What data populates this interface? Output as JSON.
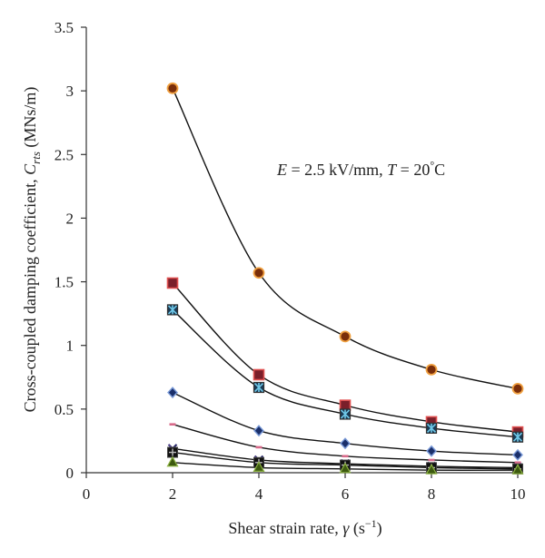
{
  "chart_data": {
    "type": "line",
    "title": "",
    "xlabel": {
      "prefix": "Shear strain rate, ",
      "symbol": "γ",
      "unit_open": " (s",
      "unit_exp": "−1",
      "unit_close": ")"
    },
    "ylabel": {
      "prefix": "Cross-coupled damping coefficient, ",
      "symbol": "C",
      "subscript": "rts",
      "unit": " (MNs/m)"
    },
    "annotation": {
      "e_symbol": "E",
      "e_text": " = 2.5 kV/mm, ",
      "t_symbol": "T",
      "t_text": " = 20",
      "degree": "°",
      "t_unit": "C"
    },
    "xlim": [
      0,
      10
    ],
    "ylim": [
      0,
      3.5
    ],
    "xticks": [
      "0",
      "2",
      "4",
      "6",
      "8",
      "10"
    ],
    "yticks": [
      "0",
      "0.5",
      "1",
      "1.5",
      "2",
      "2.5",
      "3",
      "3.5"
    ],
    "grid": false,
    "legend": "none",
    "x": [
      2,
      4,
      6,
      8,
      10
    ],
    "series": [
      {
        "marker": "circle",
        "fill": "#7a2e0a",
        "edge": "#f0a040",
        "values": [
          3.02,
          1.57,
          1.07,
          0.81,
          0.66
        ]
      },
      {
        "marker": "square",
        "fill": "#7a1f2a",
        "edge": "#e05050",
        "values": [
          1.49,
          0.77,
          0.53,
          0.4,
          0.32
        ]
      },
      {
        "marker": "square-star",
        "fill": "#1a3a55",
        "edge": "#6fc8e8",
        "values": [
          1.28,
          0.67,
          0.46,
          0.35,
          0.28
        ]
      },
      {
        "marker": "diamond",
        "fill": "#1a2f6a",
        "edge": "#7a9ad8",
        "values": [
          0.63,
          0.33,
          0.23,
          0.17,
          0.14
        ]
      },
      {
        "marker": "dash",
        "fill": "#d86a8a",
        "edge": "#d86a8a",
        "values": [
          0.38,
          0.2,
          0.13,
          0.1,
          0.08
        ]
      },
      {
        "marker": "cross",
        "fill": "#2a2a6a",
        "edge": "#7a5ab0",
        "values": [
          0.19,
          0.1,
          0.07,
          0.05,
          0.04
        ]
      },
      {
        "marker": "square-plus",
        "fill": "#111111",
        "edge": "#444444",
        "values": [
          0.16,
          0.08,
          0.06,
          0.04,
          0.03
        ]
      },
      {
        "marker": "triangle",
        "fill": "#3d5a10",
        "edge": "#8ab040",
        "values": [
          0.08,
          0.04,
          0.03,
          0.02,
          0.02
        ]
      }
    ]
  }
}
